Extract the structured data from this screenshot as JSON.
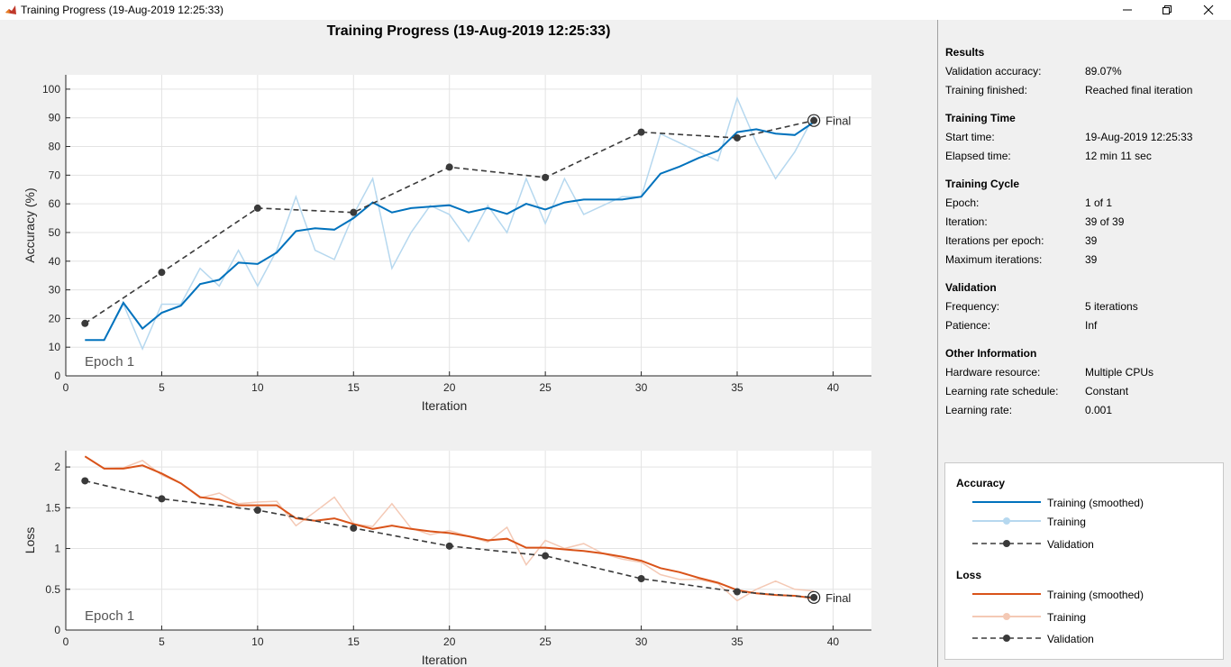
{
  "window": {
    "title": "Training Progress (19-Aug-2019 12:25:33)"
  },
  "plot": {
    "title": "Training Progress (19-Aug-2019 12:25:33)",
    "epoch_label": "Epoch 1",
    "final_label": "Final"
  },
  "colors": {
    "acc_smoothed": "#0072bd",
    "acc_training": "#b6d8ef",
    "loss_smoothed": "#d95319",
    "loss_training": "#f4c9b5",
    "validation": "#3a3a3a"
  },
  "chart_data": [
    {
      "type": "line",
      "title": "",
      "xlabel": "Iteration",
      "ylabel": "Accuracy (%)",
      "xlim": [
        0,
        42
      ],
      "ylim": [
        0,
        105
      ],
      "xticks": [
        0,
        5,
        10,
        15,
        20,
        25,
        30,
        35,
        40
      ],
      "yticks": [
        0,
        10,
        20,
        30,
        40,
        50,
        60,
        70,
        80,
        90,
        100
      ],
      "grid": true,
      "series": [
        {
          "name": "Training",
          "x": [
            1,
            2,
            3,
            4,
            5,
            6,
            7,
            8,
            9,
            10,
            11,
            12,
            13,
            14,
            15,
            16,
            17,
            18,
            19,
            20,
            21,
            22,
            23,
            24,
            25,
            26,
            27,
            28,
            29,
            30,
            31,
            32,
            33,
            34,
            35,
            36,
            37,
            38,
            39
          ],
          "values": [
            12.5,
            12.5,
            25,
            9.4,
            25,
            25,
            37.5,
            31.3,
            43.8,
            31.3,
            43.8,
            62.5,
            43.8,
            40.6,
            56.3,
            68.8,
            37.5,
            50,
            59.4,
            56.3,
            46.9,
            59.4,
            50,
            68.8,
            53.1,
            68.8,
            56.3,
            59.4,
            62.5,
            62.5,
            84.4,
            81.3,
            78.1,
            75,
            96.9,
            81.3,
            68.8,
            78.1,
            90.6
          ]
        },
        {
          "name": "Training (smoothed)",
          "x": [
            1,
            2,
            3,
            4,
            5,
            6,
            7,
            8,
            9,
            10,
            11,
            12,
            13,
            14,
            15,
            16,
            17,
            18,
            19,
            20,
            21,
            22,
            23,
            24,
            25,
            26,
            27,
            28,
            29,
            30,
            31,
            32,
            33,
            34,
            35,
            36,
            37,
            38,
            39
          ],
          "values": [
            12.5,
            12.5,
            25.5,
            16.5,
            22,
            24.5,
            32,
            33.5,
            39.5,
            39,
            43,
            50.5,
            51.5,
            51,
            55,
            60.5,
            57,
            58.5,
            59,
            59.5,
            57,
            58.5,
            56.5,
            60,
            58,
            60.5,
            61.5,
            61.5,
            61.5,
            62.5,
            70.5,
            73,
            76,
            78.5,
            85,
            86,
            84.5,
            84,
            88.5
          ]
        },
        {
          "name": "Validation",
          "x": [
            1,
            5,
            10,
            15,
            20,
            25,
            30,
            35,
            39
          ],
          "values": [
            18.3,
            36.1,
            58.5,
            57,
            72.8,
            69.2,
            85,
            83,
            89.07
          ]
        }
      ]
    },
    {
      "type": "line",
      "title": "",
      "xlabel": "Iteration",
      "ylabel": "Loss",
      "xlim": [
        0,
        42
      ],
      "ylim": [
        0,
        2.2
      ],
      "xticks": [
        0,
        5,
        10,
        15,
        20,
        25,
        30,
        35,
        40
      ],
      "yticks": [
        0,
        0.5,
        1,
        1.5,
        2
      ],
      "grid": true,
      "series": [
        {
          "name": "Training",
          "x": [
            1,
            2,
            3,
            4,
            5,
            6,
            7,
            8,
            9,
            10,
            11,
            12,
            13,
            14,
            15,
            16,
            17,
            18,
            19,
            20,
            21,
            22,
            23,
            24,
            25,
            26,
            27,
            28,
            29,
            30,
            31,
            32,
            33,
            34,
            35,
            36,
            37,
            38,
            39
          ],
          "values": [
            2.13,
            1.98,
            1.99,
            2.08,
            1.9,
            1.8,
            1.62,
            1.68,
            1.55,
            1.57,
            1.58,
            1.28,
            1.45,
            1.63,
            1.3,
            1.27,
            1.55,
            1.25,
            1.17,
            1.22,
            1.15,
            1.08,
            1.26,
            0.8,
            1.1,
            1.0,
            1.06,
            0.94,
            0.87,
            0.83,
            0.68,
            0.62,
            0.62,
            0.57,
            0.36,
            0.5,
            0.6,
            0.5,
            0.48
          ]
        },
        {
          "name": "Training (smoothed)",
          "x": [
            1,
            2,
            3,
            4,
            5,
            6,
            7,
            8,
            9,
            10,
            11,
            12,
            13,
            14,
            15,
            16,
            17,
            18,
            19,
            20,
            21,
            22,
            23,
            24,
            25,
            26,
            27,
            28,
            29,
            30,
            31,
            32,
            33,
            34,
            35,
            36,
            37,
            38,
            39
          ],
          "values": [
            2.13,
            1.98,
            1.98,
            2.02,
            1.92,
            1.8,
            1.63,
            1.6,
            1.53,
            1.53,
            1.53,
            1.37,
            1.34,
            1.37,
            1.3,
            1.24,
            1.28,
            1.24,
            1.21,
            1.19,
            1.15,
            1.1,
            1.12,
            1.01,
            1.01,
            0.99,
            0.97,
            0.94,
            0.9,
            0.85,
            0.76,
            0.71,
            0.64,
            0.58,
            0.49,
            0.45,
            0.43,
            0.42,
            0.39
          ]
        },
        {
          "name": "Validation",
          "x": [
            1,
            5,
            10,
            15,
            20,
            25,
            30,
            35,
            39
          ],
          "values": [
            1.83,
            1.61,
            1.47,
            1.25,
            1.03,
            0.91,
            0.63,
            0.47,
            0.4
          ]
        }
      ]
    }
  ],
  "info": {
    "results_title": "Results",
    "val_acc_label": "Validation accuracy:",
    "val_acc_value": "89.07%",
    "finished_label": "Training finished:",
    "finished_value": "Reached final iteration",
    "time_title": "Training Time",
    "start_label": "Start time:",
    "start_value": "19-Aug-2019 12:25:33",
    "elapsed_label": "Elapsed time:",
    "elapsed_value": "12 min 11 sec",
    "cycle_title": "Training Cycle",
    "epoch_label": "Epoch:",
    "epoch_value": "1 of 1",
    "iter_label": "Iteration:",
    "iter_value": "39 of 39",
    "ipe_label": "Iterations per epoch:",
    "ipe_value": "39",
    "maxiter_label": "Maximum iterations:",
    "maxiter_value": "39",
    "validation_title": "Validation",
    "freq_label": "Frequency:",
    "freq_value": "5 iterations",
    "patience_label": "Patience:",
    "patience_value": "Inf",
    "other_title": "Other Information",
    "hw_label": "Hardware resource:",
    "hw_value": "Multiple CPUs",
    "lrs_label": "Learning rate schedule:",
    "lrs_value": "Constant",
    "lr_label": "Learning rate:",
    "lr_value": "0.001"
  },
  "legend": {
    "accuracy_title": "Accuracy",
    "loss_title": "Loss",
    "smoothed": "Training (smoothed)",
    "training": "Training",
    "validation": "Validation"
  }
}
